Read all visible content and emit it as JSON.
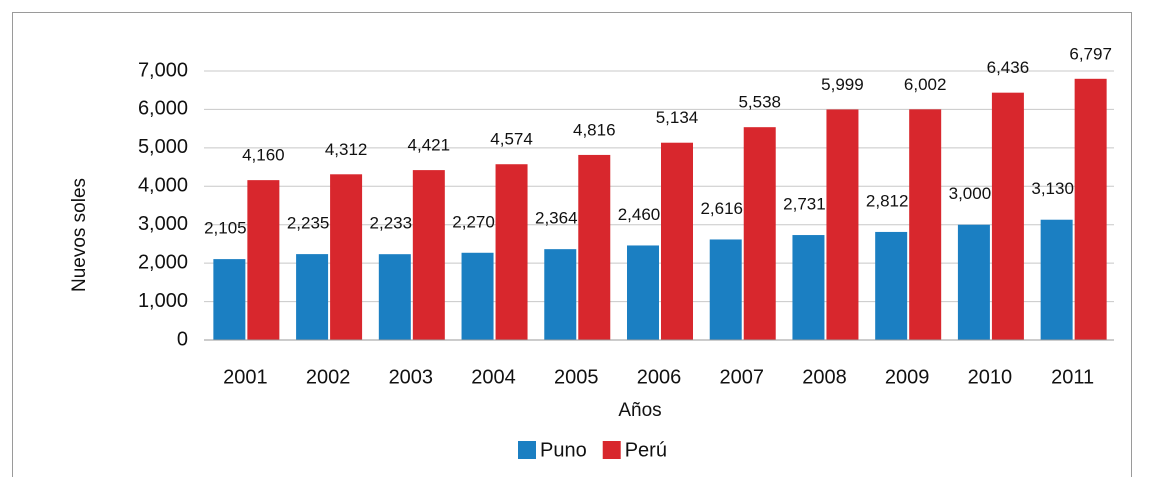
{
  "chart_data": {
    "type": "bar",
    "x_label": "Años",
    "y_label": "Nuevos soles",
    "categories": [
      "2001",
      "2002",
      "2003",
      "2004",
      "2005",
      "2006",
      "2007",
      "2008",
      "2009",
      "2010",
      "2011"
    ],
    "series": [
      {
        "name": "Puno",
        "color": "#1b7fc2",
        "values": [
          2105,
          2235,
          2233,
          2270,
          2364,
          2460,
          2616,
          2731,
          2812,
          3000,
          3130
        ],
        "value_labels": [
          "2,105",
          "2,235",
          "2,233",
          "2,270",
          "2,364",
          "2,460",
          "2,616",
          "2,731",
          "2,812",
          "3,000",
          "3,130"
        ]
      },
      {
        "name": "Perú",
        "color": "#d8272d",
        "values": [
          4160,
          4312,
          4421,
          4574,
          4816,
          5134,
          5538,
          5999,
          6002,
          6436,
          6797
        ],
        "value_labels": [
          "4,160",
          "4,312",
          "4,421",
          "4,574",
          "4,816",
          "5,134",
          "5,538",
          "5,999",
          "6,002",
          "6,436",
          "6,797"
        ]
      }
    ],
    "ylim": [
      0,
      7000
    ],
    "yticks": [
      0,
      {
        "value": 1000,
        "label": "1,000"
      },
      {
        "value": 2000,
        "label": "2,000"
      },
      {
        "value": 3000,
        "label": "3,000"
      },
      {
        "value": 4000,
        "label": "4,000"
      },
      {
        "value": 5000,
        "label": "5,000"
      },
      {
        "value": 6000,
        "label": "6,000"
      },
      {
        "value": 7000,
        "label": "7,000"
      }
    ],
    "grid": true,
    "legend": "bottom"
  }
}
